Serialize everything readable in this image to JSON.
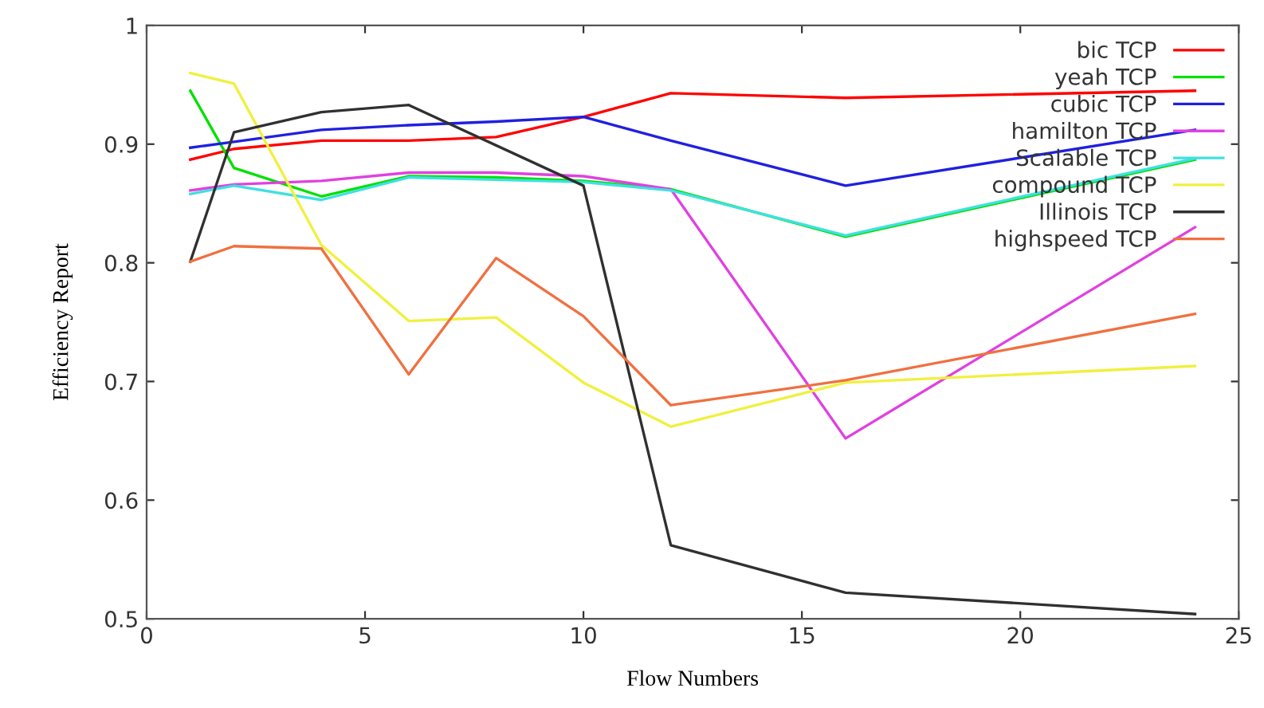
{
  "chart_data": {
    "type": "line",
    "xlabel": "Flow Numbers",
    "ylabel": "Efficiency Report",
    "x": [
      1,
      2,
      4,
      6,
      8,
      10,
      12,
      16,
      24
    ],
    "xlim": [
      0,
      25
    ],
    "xticks": [
      0,
      5,
      10,
      15,
      20,
      25
    ],
    "ylim": [
      0.5,
      1
    ],
    "yticks": [
      0.5,
      0.6,
      0.7,
      0.8,
      0.9,
      1
    ],
    "grid": false,
    "legend": "top right",
    "marker": "none",
    "line_style": "solid",
    "series": [
      {
        "name": "bic TCP",
        "color": "#ff0000",
        "values": [
          0.887,
          0.896,
          0.903,
          0.903,
          0.906,
          0.923,
          0.943,
          0.939,
          0.945
        ]
      },
      {
        "name": "yeah TCP",
        "color": "#00e000",
        "values": [
          0.945,
          0.88,
          0.856,
          0.873,
          0.872,
          0.869,
          0.862,
          0.822,
          0.887
        ]
      },
      {
        "name": "cubic TCP",
        "color": "#2020e0",
        "values": [
          0.897,
          0.902,
          0.912,
          0.916,
          0.919,
          0.923,
          0.903,
          0.865,
          0.912
        ]
      },
      {
        "name": "hamilton TCP",
        "color": "#e040e0",
        "values": [
          0.861,
          0.866,
          0.869,
          0.876,
          0.876,
          0.873,
          0.862,
          0.652,
          0.83
        ]
      },
      {
        "name": "Scalable TCP",
        "color": "#40e0e0",
        "values": [
          0.858,
          0.865,
          0.853,
          0.872,
          0.87,
          0.868,
          0.861,
          0.823,
          0.888
        ]
      },
      {
        "name": "compound TCP",
        "color": "#f0f040",
        "values": [
          0.96,
          0.951,
          0.815,
          0.751,
          0.754,
          0.699,
          0.662,
          0.699,
          0.713
        ]
      },
      {
        "name": "Illinois TCP",
        "color": "#303030",
        "x": [
          1,
          2,
          4,
          6,
          10,
          12,
          16,
          24
        ],
        "values": [
          0.801,
          0.91,
          0.927,
          0.933,
          0.865,
          0.562,
          0.522,
          0.504
        ]
      },
      {
        "name": "highspeed TCP",
        "color": "#f07040",
        "values": [
          0.801,
          0.814,
          0.812,
          0.706,
          0.804,
          0.755,
          0.68,
          0.701,
          0.757
        ]
      }
    ]
  }
}
